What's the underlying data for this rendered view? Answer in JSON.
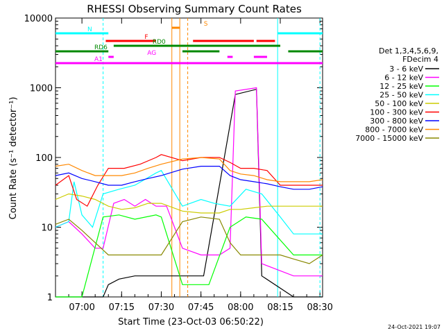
{
  "chart_data": {
    "type": "line",
    "title": "RHESSI Observing Summary Count Rates",
    "xlabel": "Start Time (23-Oct-03 06:50:22)",
    "ylabel": "Count Rate (s⁻¹ detector⁻¹)",
    "y_scale": "log",
    "ylim": [
      1,
      10000
    ],
    "xlim_minutes_after_0650": [
      0,
      101
    ],
    "x_ticks": [
      {
        "minute": 10,
        "label": "07:00"
      },
      {
        "minute": 25,
        "label": "07:15"
      },
      {
        "minute": 40,
        "label": "07:30"
      },
      {
        "minute": 55,
        "label": "07:45"
      },
      {
        "minute": 70,
        "label": "08:00"
      },
      {
        "minute": 85,
        "label": "08:15"
      },
      {
        "minute": 100,
        "label": "08:30"
      }
    ],
    "y_ticks": [
      {
        "value": 1,
        "label": "1"
      },
      {
        "value": 10,
        "label": "10"
      },
      {
        "value": 100,
        "label": "100"
      },
      {
        "value": 1000,
        "label": "1000"
      },
      {
        "value": 10000,
        "label": "10000"
      }
    ],
    "legend_header": [
      "Det 1,3,4,5,6,9,",
      "FDecim 4"
    ],
    "legend_position": "right",
    "timestamp": "24-Oct-2021 19:07",
    "series": [
      {
        "name": "3 - 6 keV",
        "color": "#000000",
        "points": [
          [
            0,
            1
          ],
          [
            18,
            1
          ],
          [
            20,
            1.5
          ],
          [
            24,
            1.8
          ],
          [
            30,
            2
          ],
          [
            38,
            2
          ],
          [
            48,
            2
          ],
          [
            56,
            2
          ],
          [
            68,
            800
          ],
          [
            76,
            950
          ],
          [
            78,
            2
          ],
          [
            90,
            1
          ],
          [
            101,
            1
          ]
        ]
      },
      {
        "name": "6 - 12 keV",
        "color": "#ff00ff",
        "points": [
          [
            0,
            10
          ],
          [
            5,
            12
          ],
          [
            10,
            8
          ],
          [
            15,
            5
          ],
          [
            18,
            5
          ],
          [
            22,
            22
          ],
          [
            26,
            25
          ],
          [
            30,
            20
          ],
          [
            34,
            25
          ],
          [
            38,
            20
          ],
          [
            42,
            20
          ],
          [
            48,
            5
          ],
          [
            55,
            4
          ],
          [
            62,
            4
          ],
          [
            66,
            5
          ],
          [
            68,
            900
          ],
          [
            76,
            1000
          ],
          [
            78,
            3
          ],
          [
            90,
            2
          ],
          [
            101,
            2
          ]
        ]
      },
      {
        "name": "12 - 25 keV",
        "color": "#00ff00",
        "points": [
          [
            0,
            1
          ],
          [
            10,
            1
          ],
          [
            18,
            14
          ],
          [
            24,
            15
          ],
          [
            30,
            13
          ],
          [
            38,
            15
          ],
          [
            40,
            14
          ],
          [
            48,
            1.5
          ],
          [
            58,
            1.5
          ],
          [
            66,
            10
          ],
          [
            72,
            14
          ],
          [
            78,
            13
          ],
          [
            90,
            4
          ],
          [
            101,
            4
          ]
        ]
      },
      {
        "name": "25 - 50 keV",
        "color": "#00ffff",
        "points": [
          [
            0,
            10
          ],
          [
            5,
            12
          ],
          [
            7,
            45
          ],
          [
            10,
            15
          ],
          [
            14,
            10
          ],
          [
            18,
            30
          ],
          [
            24,
            35
          ],
          [
            30,
            40
          ],
          [
            38,
            60
          ],
          [
            40,
            65
          ],
          [
            48,
            20
          ],
          [
            55,
            25
          ],
          [
            60,
            22
          ],
          [
            66,
            20
          ],
          [
            72,
            35
          ],
          [
            78,
            30
          ],
          [
            85,
            14
          ],
          [
            90,
            8
          ],
          [
            101,
            8
          ]
        ]
      },
      {
        "name": "50 - 100 keV",
        "color": "#cccc00",
        "points": [
          [
            0,
            25
          ],
          [
            5,
            30
          ],
          [
            10,
            28
          ],
          [
            15,
            25
          ],
          [
            20,
            20
          ],
          [
            25,
            18
          ],
          [
            30,
            19
          ],
          [
            35,
            22
          ],
          [
            40,
            22
          ],
          [
            48,
            17
          ],
          [
            55,
            16
          ],
          [
            62,
            16
          ],
          [
            66,
            18
          ],
          [
            70,
            18
          ],
          [
            75,
            19
          ],
          [
            80,
            20
          ],
          [
            90,
            20
          ],
          [
            101,
            20
          ]
        ]
      },
      {
        "name": "100 - 300 keV",
        "color": "#ff0000",
        "points": [
          [
            0,
            40
          ],
          [
            5,
            55
          ],
          [
            8,
            25
          ],
          [
            12,
            20
          ],
          [
            16,
            40
          ],
          [
            20,
            70
          ],
          [
            26,
            70
          ],
          [
            32,
            80
          ],
          [
            38,
            100
          ],
          [
            40,
            110
          ],
          [
            48,
            90
          ],
          [
            55,
            100
          ],
          [
            62,
            100
          ],
          [
            66,
            85
          ],
          [
            70,
            70
          ],
          [
            75,
            70
          ],
          [
            80,
            65
          ],
          [
            85,
            40
          ],
          [
            90,
            40
          ],
          [
            101,
            40
          ]
        ]
      },
      {
        "name": "300 - 800 keV",
        "color": "#0000ff",
        "points": [
          [
            0,
            55
          ],
          [
            5,
            60
          ],
          [
            10,
            50
          ],
          [
            15,
            45
          ],
          [
            20,
            40
          ],
          [
            25,
            40
          ],
          [
            30,
            45
          ],
          [
            35,
            50
          ],
          [
            40,
            55
          ],
          [
            48,
            68
          ],
          [
            55,
            75
          ],
          [
            62,
            75
          ],
          [
            66,
            55
          ],
          [
            70,
            48
          ],
          [
            75,
            45
          ],
          [
            80,
            42
          ],
          [
            85,
            38
          ],
          [
            90,
            35
          ],
          [
            96,
            35
          ],
          [
            101,
            38
          ]
        ]
      },
      {
        "name": "800 - 7000 keV",
        "color": "#ff8800",
        "points": [
          [
            0,
            75
          ],
          [
            5,
            80
          ],
          [
            10,
            65
          ],
          [
            15,
            55
          ],
          [
            20,
            55
          ],
          [
            25,
            55
          ],
          [
            30,
            60
          ],
          [
            35,
            70
          ],
          [
            40,
            80
          ],
          [
            48,
            95
          ],
          [
            55,
            100
          ],
          [
            62,
            95
          ],
          [
            66,
            65
          ],
          [
            70,
            58
          ],
          [
            75,
            55
          ],
          [
            80,
            48
          ],
          [
            85,
            45
          ],
          [
            90,
            45
          ],
          [
            96,
            45
          ],
          [
            101,
            48
          ]
        ]
      },
      {
        "name": "7000 - 15000 keV",
        "color": "#888800",
        "points": [
          [
            0,
            11
          ],
          [
            5,
            13
          ],
          [
            10,
            9
          ],
          [
            15,
            6
          ],
          [
            20,
            4
          ],
          [
            25,
            4
          ],
          [
            30,
            4
          ],
          [
            35,
            4
          ],
          [
            40,
            4
          ],
          [
            48,
            12
          ],
          [
            55,
            14
          ],
          [
            62,
            13
          ],
          [
            66,
            6
          ],
          [
            70,
            4
          ],
          [
            75,
            4
          ],
          [
            80,
            4
          ],
          [
            85,
            4
          ],
          [
            90,
            3.5
          ],
          [
            96,
            3
          ],
          [
            101,
            4
          ]
        ]
      }
    ],
    "state_bars": [
      {
        "label": "N",
        "color": "#00ffff",
        "segments": [
          [
            0,
            20
          ],
          [
            84,
            101
          ]
        ]
      },
      {
        "label": "S",
        "color": "#ff8800",
        "segments": [
          [
            44,
            47
          ]
        ]
      },
      {
        "label": "F",
        "color": "#ff0000",
        "segments": [
          [
            19,
            38
          ],
          [
            52,
            75
          ],
          [
            76,
            83
          ]
        ]
      },
      {
        "label": "RD0",
        "color": "#008800",
        "segments": [
          [
            22,
            47
          ],
          [
            47,
            85
          ]
        ]
      },
      {
        "label": "RD6",
        "color": "#008800",
        "segments": [
          [
            0,
            20
          ],
          [
            48,
            62
          ],
          [
            88,
            101
          ]
        ]
      },
      {
        "label": "AG",
        "color": "#ff00ff",
        "segments": [
          [
            20,
            22
          ],
          [
            65,
            67
          ],
          [
            75,
            80
          ]
        ]
      },
      {
        "label": "A1",
        "color": "#ff00ff",
        "segments": [
          [
            0,
            101
          ]
        ]
      }
    ],
    "vertical_markers": [
      {
        "minute": 18,
        "color": "#00ffff",
        "style": "dashed"
      },
      {
        "minute": 44,
        "color": "#ff8800",
        "style": "solid"
      },
      {
        "minute": 47,
        "color": "#ff8800",
        "style": "solid"
      },
      {
        "minute": 50,
        "color": "#ff8800",
        "style": "dashed"
      },
      {
        "minute": 84,
        "color": "#00ffff",
        "style": "solid"
      },
      {
        "minute": 100,
        "color": "#00ffff",
        "style": "dashed"
      }
    ]
  }
}
